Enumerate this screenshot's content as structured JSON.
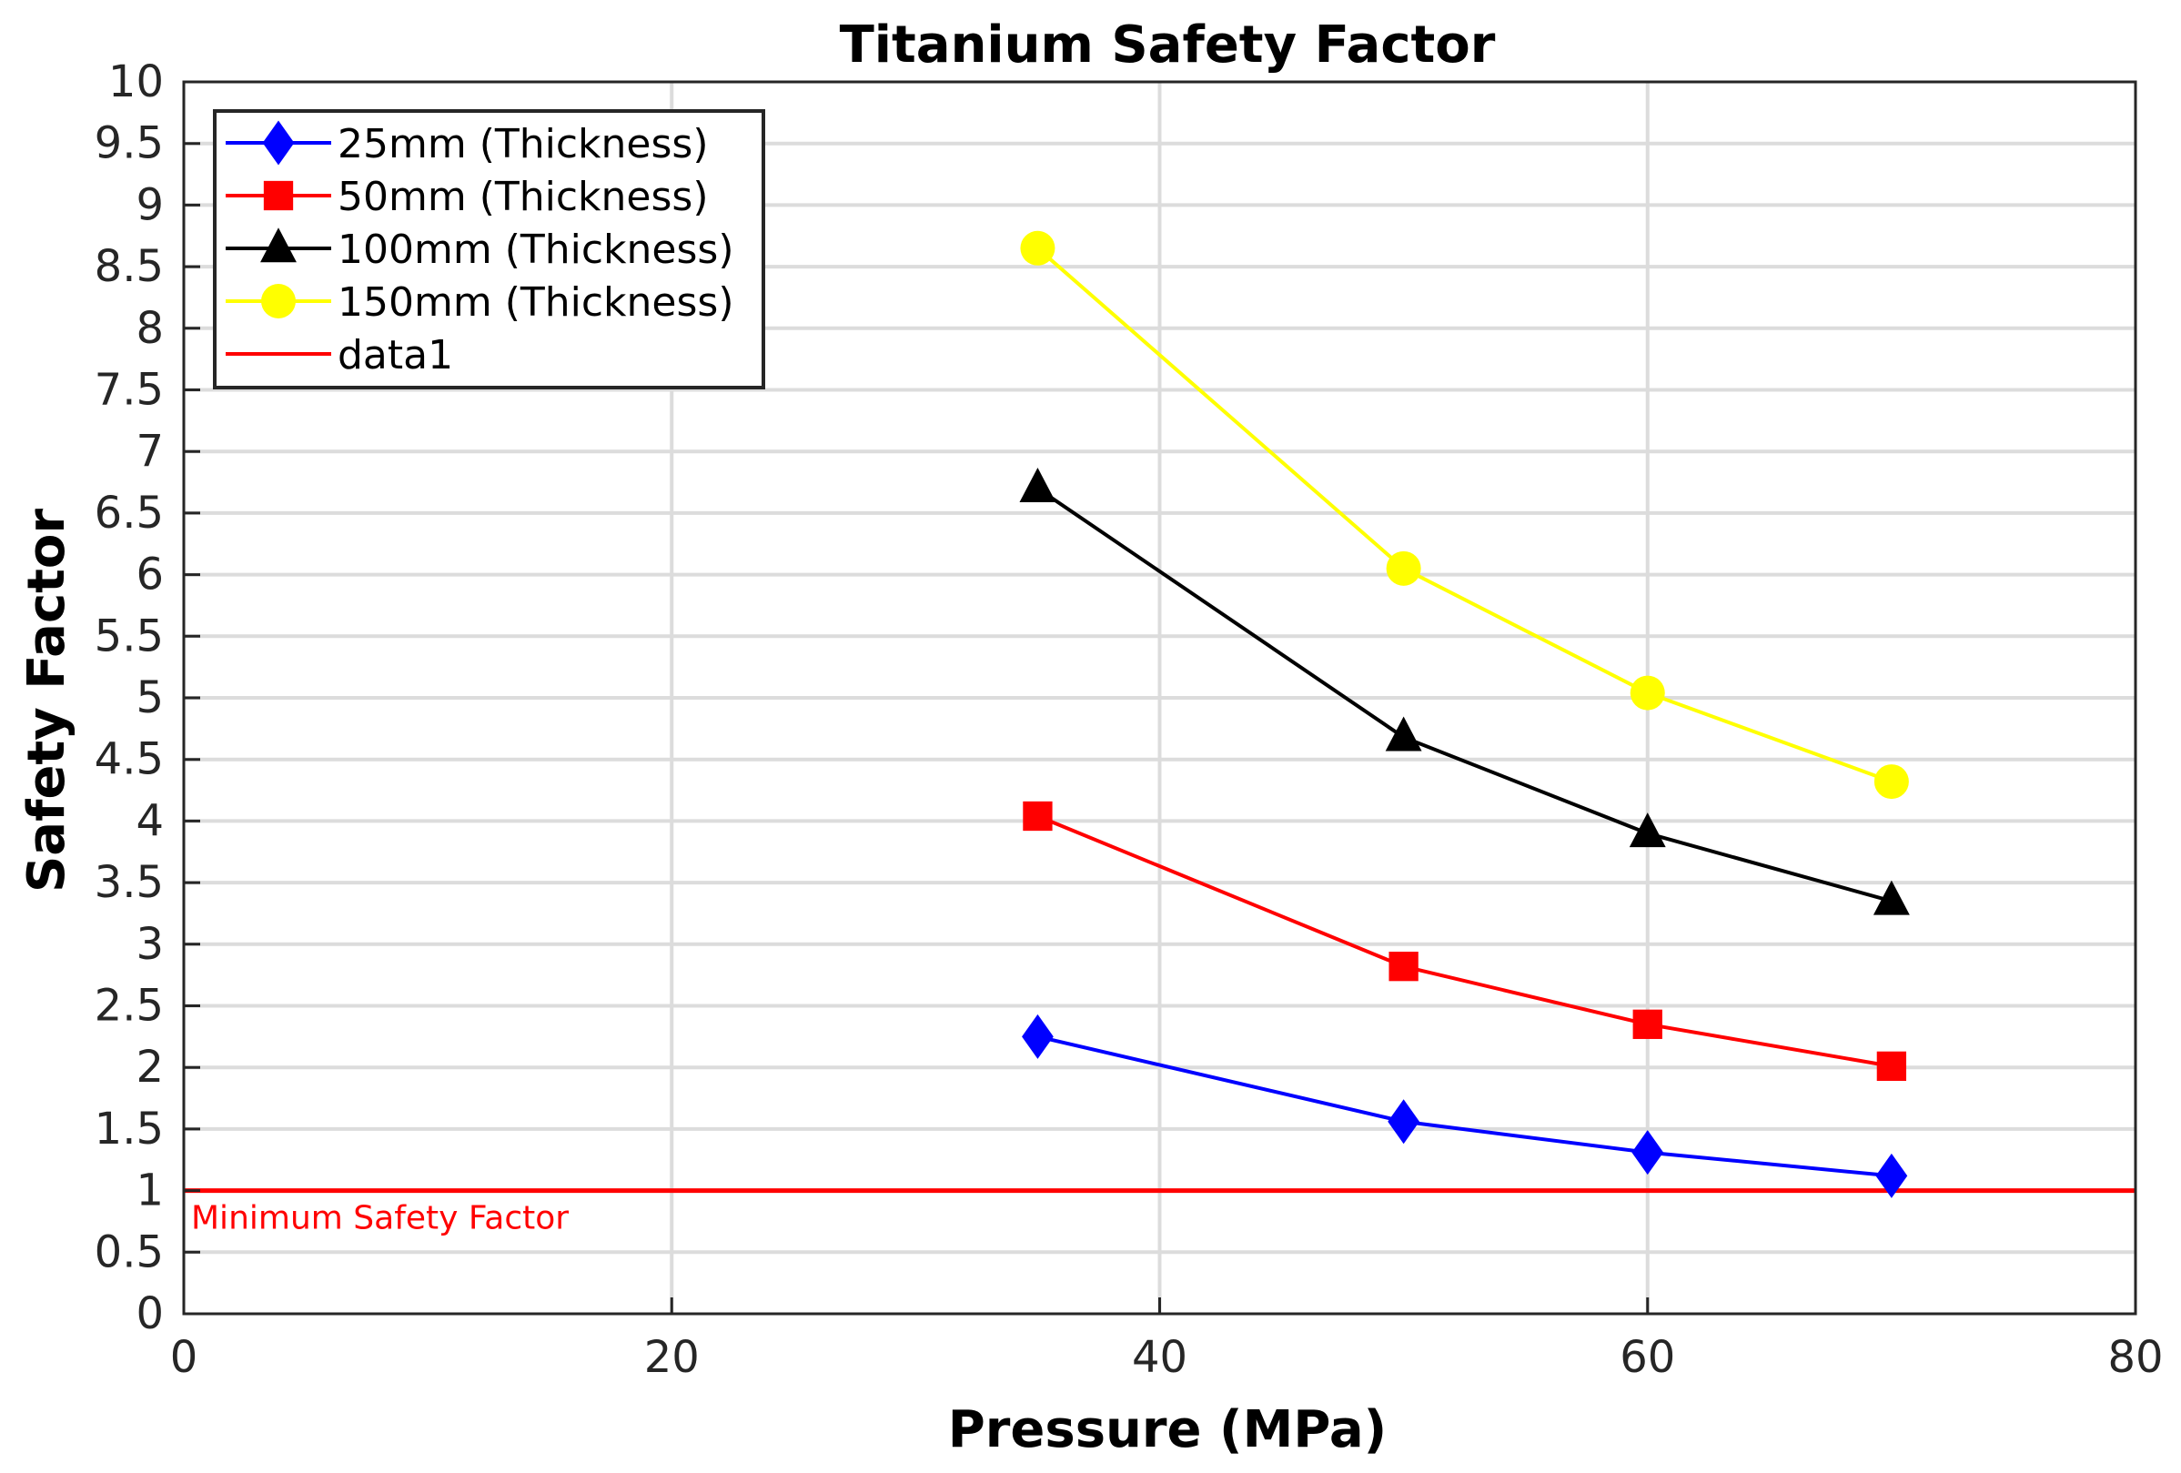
{
  "chart_data": {
    "type": "line",
    "title": "Titanium Safety Factor",
    "xlabel": "Pressure (MPa)",
    "ylabel": "Safety Factor",
    "xlim": [
      0,
      80
    ],
    "ylim": [
      0,
      10
    ],
    "x_ticks": [
      0,
      20,
      40,
      60,
      80
    ],
    "y_ticks": [
      0,
      0.5,
      1,
      1.5,
      2,
      2.5,
      3,
      3.5,
      4,
      4.5,
      5,
      5.5,
      6,
      6.5,
      7,
      7.5,
      8,
      8.5,
      9,
      9.5,
      10
    ],
    "x_tick_labels": [
      "0",
      "20",
      "40",
      "60",
      "80"
    ],
    "y_tick_labels": [
      "0",
      "0.5",
      "1",
      "1.5",
      "2",
      "2.5",
      "3",
      "3.5",
      "4",
      "4.5",
      "5",
      "5.5",
      "6",
      "6.5",
      "7",
      "7.5",
      "8",
      "8.5",
      "9",
      "9.5",
      "10"
    ],
    "grid": true,
    "legend_position": "top-left",
    "x": [
      35,
      50,
      60,
      70
    ],
    "series": [
      {
        "name": "25mm (Thickness)",
        "color": "#0000ff",
        "marker": "diamond",
        "values": [
          2.25,
          1.56,
          1.31,
          1.12
        ]
      },
      {
        "name": "50mm (Thickness)",
        "color": "#ff0000",
        "marker": "square",
        "values": [
          4.04,
          2.82,
          2.35,
          2.01
        ]
      },
      {
        "name": "100mm (Thickness)",
        "color": "#000000",
        "marker": "triangle",
        "values": [
          6.7,
          4.68,
          3.9,
          3.35
        ]
      },
      {
        "name": "150mm (Thickness)",
        "color": "#ffff00",
        "marker": "circle",
        "values": [
          8.65,
          6.05,
          5.04,
          4.32
        ]
      }
    ],
    "reference_line": {
      "name": "data1",
      "y": 1,
      "color": "#ff0000"
    },
    "annotation": {
      "text": "Minimum Safety Factor",
      "x": 0,
      "y": 1,
      "color": "#ff0000"
    }
  }
}
